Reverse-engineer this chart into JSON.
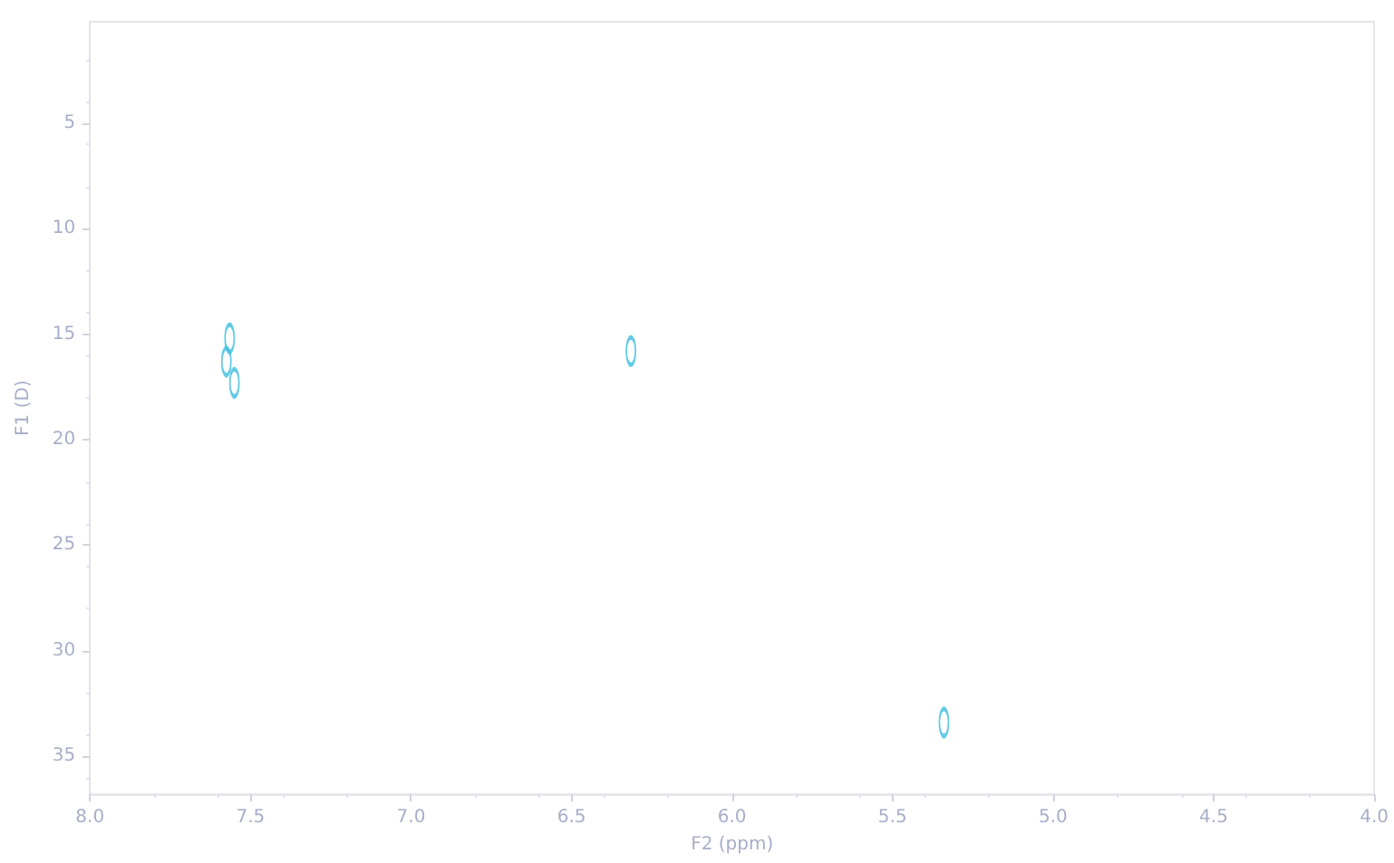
{
  "chart_data": {
    "type": "scatter",
    "xlabel": "F2 (ppm)",
    "ylabel": "F1 (D)",
    "x": [
      7.565,
      7.575,
      7.55,
      6.315,
      5.34
    ],
    "values": [
      15.2,
      16.3,
      17.3,
      15.8,
      33.4
    ],
    "color": "#3cbde0",
    "marker": "circle",
    "grid": false,
    "xlim": [
      8.0,
      4.0
    ],
    "ylim": [
      36.8,
      0.2
    ],
    "xticks": [
      {
        "value": 8,
        "label": "8.0"
      },
      {
        "value": 7.5,
        "label": "7.5"
      },
      {
        "value": 7,
        "label": "7.0"
      },
      {
        "value": 6.5,
        "label": "6.5"
      },
      {
        "value": 6,
        "label": "6.0"
      },
      {
        "value": 5.5,
        "label": "5.5"
      },
      {
        "value": 5,
        "label": "5.0"
      },
      {
        "value": 4.5,
        "label": "4.5"
      },
      {
        "value": 4,
        "label": "4.0"
      }
    ],
    "yticks": [
      5,
      10,
      15,
      20,
      25,
      30,
      35
    ]
  }
}
